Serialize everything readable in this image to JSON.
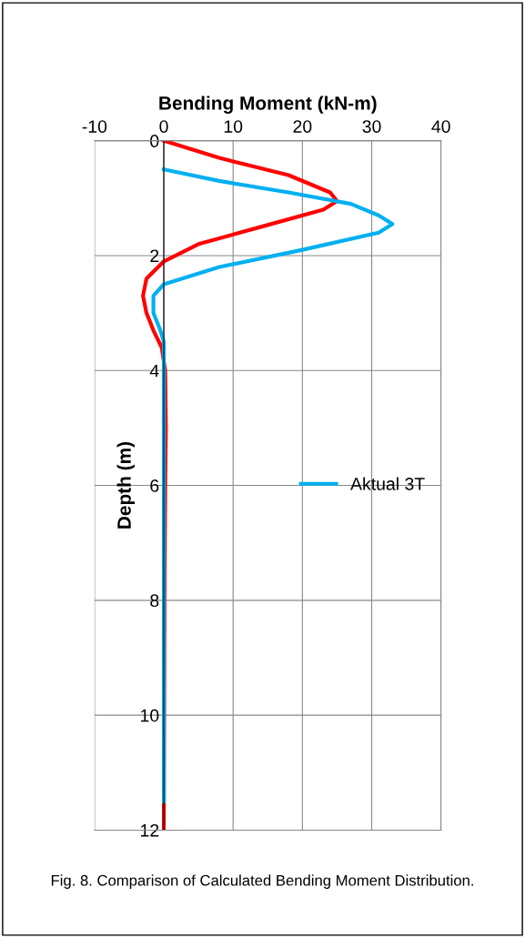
{
  "chart_data": {
    "type": "line",
    "xlabel": "Bending Moment (kN-m)",
    "ylabel": "Depth (m)",
    "xlim": [
      -10,
      40
    ],
    "xticks": [
      -10,
      0,
      10,
      20,
      30,
      40
    ],
    "ylim": [
      12,
      0
    ],
    "yticks": [
      0,
      2,
      4,
      6,
      8,
      10,
      12
    ],
    "grid": true,
    "legend": "right",
    "marker": "none",
    "line_style": "solid",
    "series": [
      {
        "color": "#ff0000",
        "x": [
          0,
          8,
          18,
          24,
          25,
          23,
          14,
          5,
          0,
          -2.5,
          -3,
          -2.5,
          -1.5,
          -0.3,
          0.2,
          0.3,
          0.2,
          0.1,
          0.05,
          0
        ],
        "values": [
          0,
          0.3,
          0.6,
          0.9,
          1.05,
          1.2,
          1.5,
          1.8,
          2.1,
          2.4,
          2.7,
          3.0,
          3.3,
          3.6,
          4.0,
          5,
          6,
          8,
          10,
          12
        ]
      },
      {
        "name": "Aktual 3T",
        "color": "#00b0f0",
        "x": [
          0,
          8,
          18,
          27,
          31,
          33,
          31,
          20,
          8,
          0,
          -1.5,
          -1.5,
          -0.5,
          0,
          0
        ],
        "values": [
          0.5,
          0.7,
          0.9,
          1.1,
          1.3,
          1.45,
          1.6,
          1.9,
          2.2,
          2.5,
          2.7,
          3.0,
          3.3,
          3.5,
          11.5
        ]
      }
    ],
    "annotations": [
      "Fig. 8. Comparison of Calculated Bending Moment Distribution."
    ]
  }
}
